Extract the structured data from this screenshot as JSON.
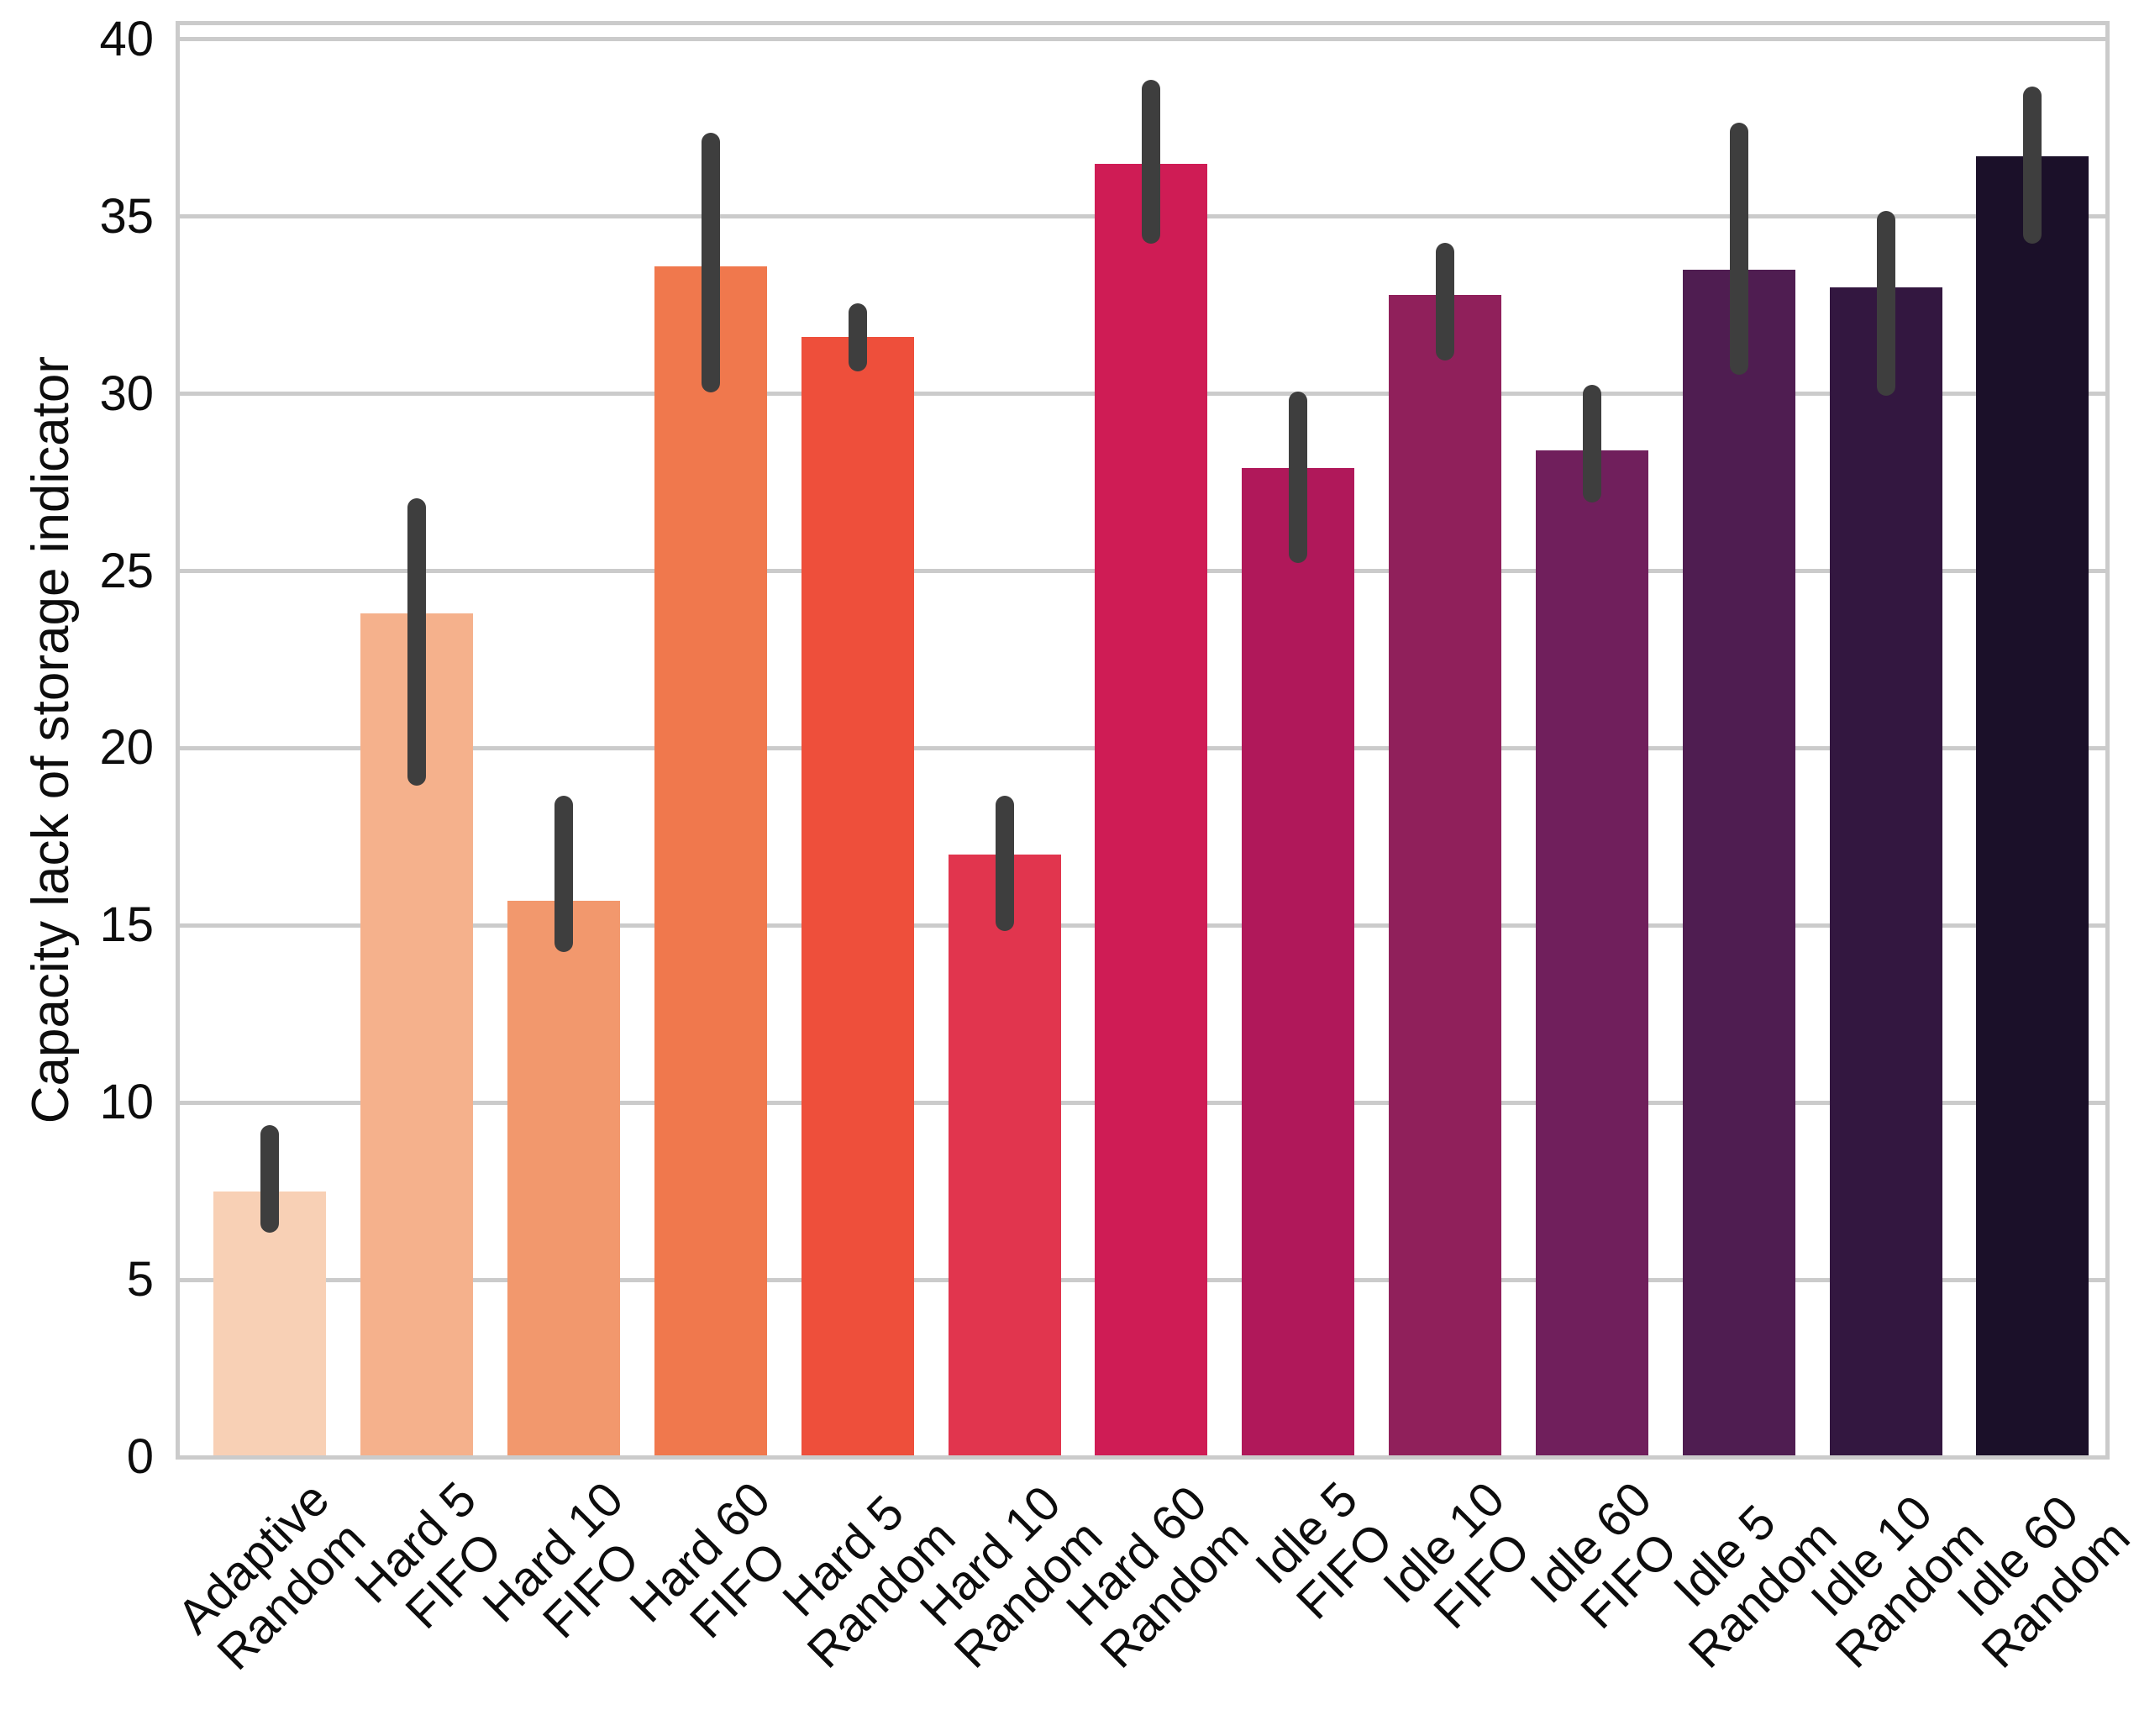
{
  "chart_data": {
    "type": "bar",
    "title": "",
    "xlabel": "",
    "ylabel": "Capacity lack of storage indicator",
    "ylim": [
      0,
      40.45
    ],
    "yticks": [
      0,
      5,
      10,
      15,
      20,
      25,
      30,
      35,
      40
    ],
    "grid": true,
    "legend": "none",
    "categories": [
      "Adaptive\nRandom",
      "Hard 5\nFIFO",
      "Hard 10\nFIFO",
      "Hard 60\nFIFO",
      "Hard 5\nRandom",
      "Hard 10\nRandom",
      "Hard 60\nRandom",
      "Idle 5\nFIFO",
      "Idle 10\nFIFO",
      "Idle 60\nFIFO",
      "Idle 5\nRandom",
      "Idle 10\nRandom",
      "Idle 60\nRandom"
    ],
    "values": [
      7.5,
      23.8,
      15.7,
      33.6,
      31.6,
      17.0,
      36.5,
      27.9,
      32.8,
      28.4,
      33.5,
      33.0,
      36.7
    ],
    "error_low": [
      6.6,
      19.2,
      14.5,
      30.3,
      30.9,
      15.1,
      34.5,
      25.5,
      31.2,
      27.2,
      30.8,
      30.2,
      34.5
    ],
    "error_high": [
      9.1,
      26.8,
      18.4,
      37.1,
      32.3,
      18.4,
      38.6,
      29.8,
      34.0,
      30.0,
      37.4,
      34.9,
      38.4
    ],
    "bar_colors": [
      "#F8D0B5",
      "#F5B18C",
      "#F2986D",
      "#F0784D",
      "#EE4F3B",
      "#E1354E",
      "#CF1C55",
      "#B0185A",
      "#90205B",
      "#701F5C",
      "#4F1D51",
      "#331740",
      "#1B1029"
    ],
    "style": {
      "background": "#FFFFFF",
      "grid_color": "#CBCBCB",
      "spine_color": "#CBCBCB",
      "error_color": "#3E3E3E",
      "text_color": "#0D0D0D"
    }
  }
}
